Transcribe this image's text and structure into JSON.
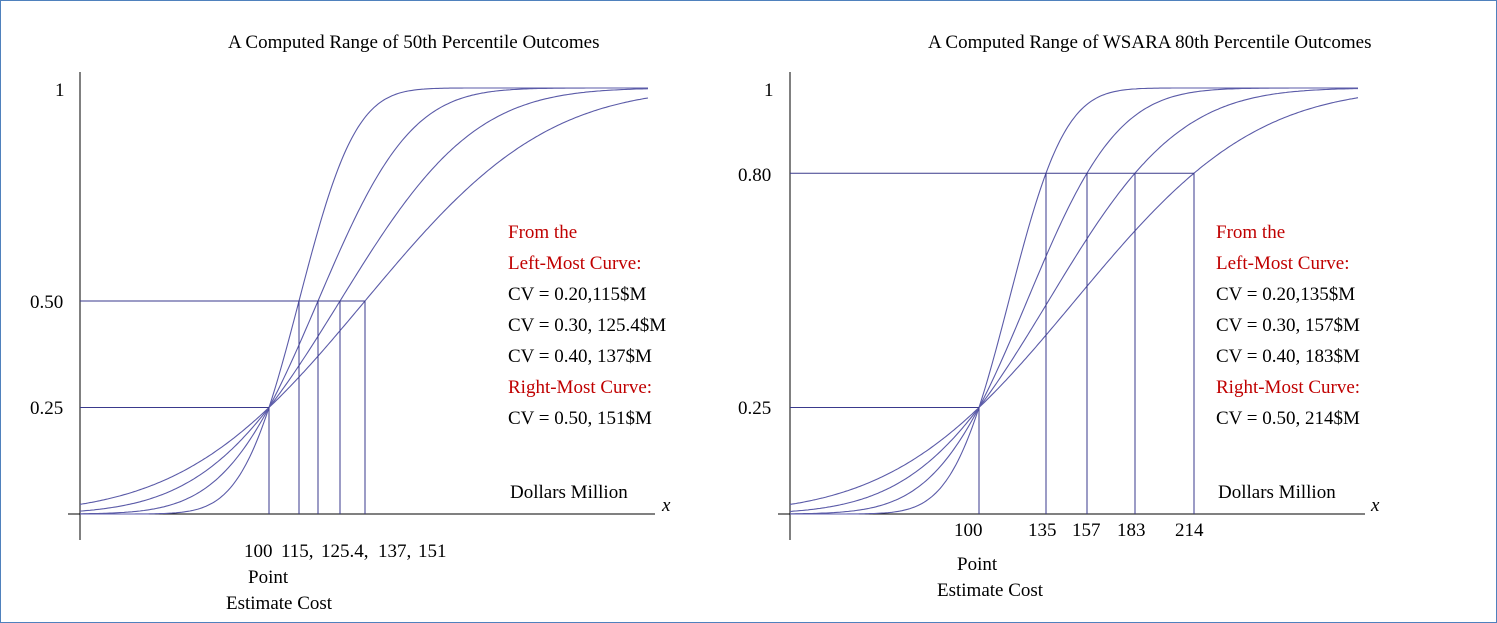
{
  "colors": {
    "curve": "#5b5ba8",
    "guide": "#3a3a8c",
    "annotation_red": "#c00000",
    "frame": "#4f81bd"
  },
  "chart_data": [
    {
      "type": "line",
      "title": "A Computed Range of 50th Percentile Outcomes",
      "xlabel": "Dollars Million",
      "x_axis_symbol": "x",
      "y_ticks": [
        "1",
        "0.50",
        "0.25"
      ],
      "x_tick_labels": [
        "100",
        "115,",
        "125.4,",
        "137,",
        "151"
      ],
      "x_sub_labels": [
        "Point",
        "Estimate Cost"
      ],
      "target_percentile": 0.5,
      "point_estimate": {
        "x": 100,
        "y": 0.25
      },
      "series": [
        {
          "cv": 0.2,
          "value_at_target": 115
        },
        {
          "cv": 0.3,
          "value_at_target": 125.4
        },
        {
          "cv": 0.4,
          "value_at_target": 137
        },
        {
          "cv": 0.5,
          "value_at_target": 151
        }
      ],
      "annotation": {
        "heading_1": "From the",
        "heading_2": "Left-Most Curve:",
        "line_1": "CV = 0.20,115$M",
        "line_2": "CV = 0.30, 125.4$M",
        "line_3": "CV = 0.40, 137$M",
        "heading_3": "Right-Most Curve:",
        "line_4": "CV = 0.50, 151$M"
      }
    },
    {
      "type": "line",
      "title": "A Computed Range of WSARA 80th Percentile Outcomes",
      "xlabel": "Dollars Million",
      "x_axis_symbol": "x",
      "y_ticks": [
        "1",
        "0.80",
        "0.25"
      ],
      "x_tick_labels": [
        "100",
        "135",
        "157",
        "183",
        "214"
      ],
      "x_sub_labels": [
        "Point",
        "Estimate Cost"
      ],
      "target_percentile": 0.8,
      "point_estimate": {
        "x": 100,
        "y": 0.25
      },
      "series": [
        {
          "cv": 0.2,
          "value_at_target": 135
        },
        {
          "cv": 0.3,
          "value_at_target": 157
        },
        {
          "cv": 0.4,
          "value_at_target": 183
        },
        {
          "cv": 0.5,
          "value_at_target": 214
        }
      ],
      "annotation": {
        "heading_1": "From the",
        "heading_2": "Left-Most Curve:",
        "line_1": "CV = 0.20,135$M",
        "line_2": "CV = 0.30, 157$M",
        "line_3": "CV = 0.40, 183$M",
        "heading_3": "Right-Most Curve:",
        "line_4": "CV = 0.50, 214$M"
      }
    }
  ]
}
